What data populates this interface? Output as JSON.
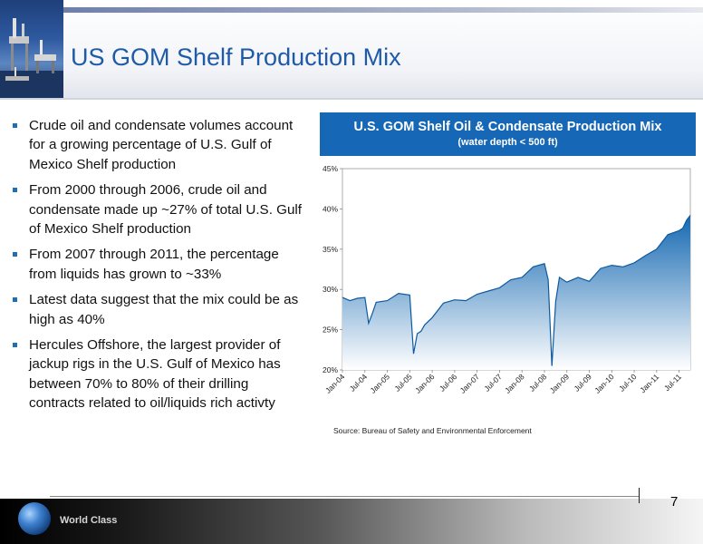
{
  "header": {
    "title": "US GOM Shelf Production Mix"
  },
  "bullets": [
    "Crude oil and condensate volumes account for a growing percentage of U.S. Gulf of Mexico Shelf production",
    "From 2000 through 2006, crude oil and condensate made up ~27% of total U.S. Gulf of Mexico Shelf production",
    "From 2007 through 2011, the percentage from liquids has grown to ~33%",
    "Latest data suggest that the mix could be as high as 40%",
    "Hercules Offshore, the largest provider of jackup rigs in the U.S. Gulf of Mexico has between 70% to 80% of their drilling contracts related to oil/liquids rich activty"
  ],
  "chart_header": {
    "title": "U.S. GOM Shelf Oil & Condensate Production Mix",
    "subtitle": "(water depth < 500 ft)"
  },
  "source": "Source: Bureau of Safety and Environmental Enforcement",
  "footer": {
    "brand": "World Class",
    "page": "7"
  },
  "chart_data": {
    "type": "area",
    "title": "U.S. GOM Shelf Oil & Condensate Production Mix",
    "subtitle": "(water depth < 500 ft)",
    "xlabel": "",
    "ylabel": "",
    "ylim": [
      20,
      45
    ],
    "yticks": [
      20,
      25,
      30,
      35,
      40,
      45
    ],
    "ytick_labels": [
      "20%",
      "25%",
      "30%",
      "35%",
      "40%",
      "45%"
    ],
    "grid": false,
    "legend": "none",
    "fill_color": "#1a70b8",
    "x_labels": [
      "Jan-04",
      "Jul-04",
      "Jan-05",
      "Jul-05",
      "Jan-06",
      "Jul-06",
      "Jan-07",
      "Jul-07",
      "Jan-08",
      "Jul-08",
      "Jan-09",
      "Jul-09",
      "Jan-10",
      "Jul-10",
      "Jan-11",
      "Jul-11"
    ],
    "x": [
      "Jan-04",
      "Mar-04",
      "May-04",
      "Jul-04",
      "Aug-04",
      "Sep-04",
      "Oct-04",
      "Jan-05",
      "Apr-05",
      "Jul-05",
      "Aug-05",
      "Sep-05",
      "Oct-05",
      "Nov-05",
      "Jan-06",
      "Apr-06",
      "Jul-06",
      "Oct-06",
      "Jan-07",
      "Apr-07",
      "Jul-07",
      "Oct-07",
      "Jan-08",
      "Apr-08",
      "Jul-08",
      "Aug-08",
      "Sep-08",
      "Oct-08",
      "Nov-08",
      "Jan-09",
      "Apr-09",
      "Jul-09",
      "Oct-09",
      "Jan-10",
      "Apr-10",
      "Jul-10",
      "Oct-10",
      "Jan-11",
      "Apr-11",
      "Jul-11",
      "Aug-11",
      "Sep-11",
      "Oct-11"
    ],
    "values": [
      29.0,
      28.6,
      28.9,
      29.0,
      25.8,
      27.0,
      28.4,
      28.6,
      29.5,
      29.3,
      22.0,
      24.5,
      24.8,
      25.6,
      26.5,
      28.3,
      28.7,
      28.6,
      29.4,
      29.8,
      30.2,
      31.2,
      31.5,
      32.8,
      33.2,
      31.2,
      20.5,
      28.5,
      31.5,
      30.9,
      31.5,
      31.0,
      32.6,
      33.0,
      32.8,
      33.3,
      34.2,
      35.0,
      36.8,
      37.3,
      37.6,
      38.6,
      39.2
    ]
  }
}
